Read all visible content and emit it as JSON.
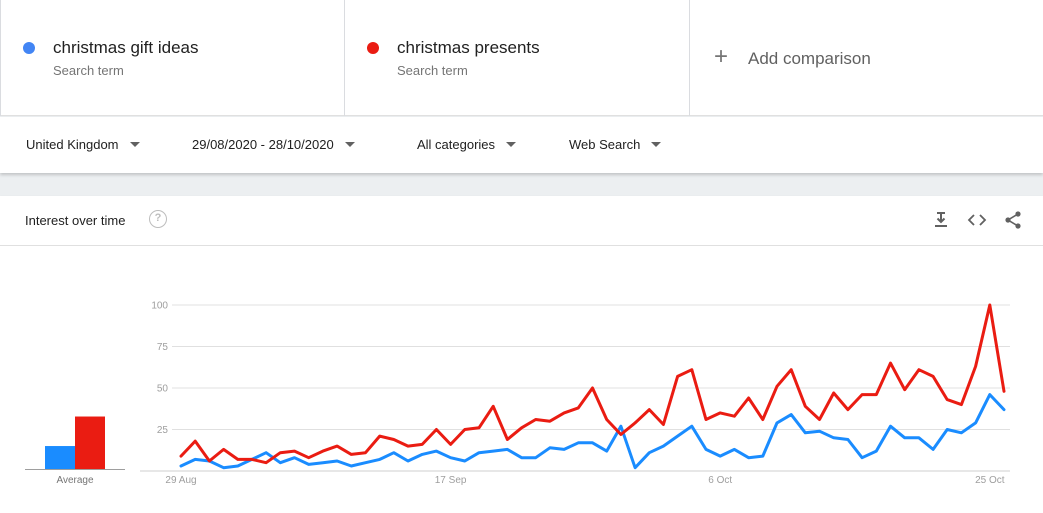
{
  "terms": [
    {
      "name": "christmas gift ideas",
      "sub": "Search term",
      "color": "#4285f4"
    },
    {
      "name": "christmas presents",
      "sub": "Search term",
      "color": "#ea1c12"
    }
  ],
  "add_comparison": {
    "plus": "+",
    "label": "Add comparison"
  },
  "filters": {
    "region": "United Kingdom",
    "date_range": "29/08/2020 - 28/10/2020",
    "category": "All categories",
    "search_type": "Web Search"
  },
  "card": {
    "title": "Interest over time",
    "help": "?"
  },
  "icons": [
    "help-icon",
    "download-icon",
    "embed-icon",
    "share-icon"
  ],
  "chart_data": {
    "type": "line",
    "title": "",
    "xlabel": "",
    "ylabel": "",
    "ylim": [
      0,
      100
    ],
    "y_ticks": [
      25,
      50,
      75,
      100
    ],
    "x_tick_labels": [
      {
        "label": "29 Aug",
        "index": 0
      },
      {
        "label": "17 Sep",
        "index": 19
      },
      {
        "label": "6 Oct",
        "index": 38
      },
      {
        "label": "25 Oct",
        "index": 57
      }
    ],
    "grid": true,
    "series": [
      {
        "name": "christmas gift ideas",
        "color": "#1a8cff",
        "values": [
          3,
          7,
          6,
          2,
          3,
          7,
          11,
          5,
          8,
          4,
          5,
          6,
          3,
          5,
          7,
          11,
          6,
          10,
          12,
          8,
          6,
          11,
          12,
          13,
          8,
          8,
          14,
          13,
          17,
          17,
          12,
          27,
          2,
          11,
          15,
          21,
          27,
          13,
          9,
          13,
          8,
          9,
          29,
          34,
          23,
          24,
          20,
          19,
          8,
          12,
          27,
          20,
          20,
          13,
          25,
          23,
          29,
          46,
          37
        ]
      },
      {
        "name": "christmas presents",
        "color": "#ea1c12",
        "values": [
          9,
          18,
          6,
          13,
          7,
          7,
          5,
          11,
          12,
          8,
          12,
          15,
          10,
          11,
          21,
          19,
          15,
          16,
          25,
          16,
          25,
          26,
          39,
          19,
          26,
          31,
          30,
          35,
          38,
          50,
          31,
          22,
          29,
          37,
          28,
          57,
          61,
          31,
          35,
          33,
          44,
          31,
          51,
          61,
          39,
          31,
          47,
          37,
          46,
          46,
          65,
          49,
          61,
          57,
          43,
          40,
          63,
          100,
          48
        ]
      }
    ],
    "average": [
      {
        "name": "christmas gift ideas",
        "value": 14,
        "color": "#1a8cff"
      },
      {
        "name": "christmas presents",
        "value": 32,
        "color": "#ea1c12"
      }
    ],
    "average_label": "Average"
  }
}
